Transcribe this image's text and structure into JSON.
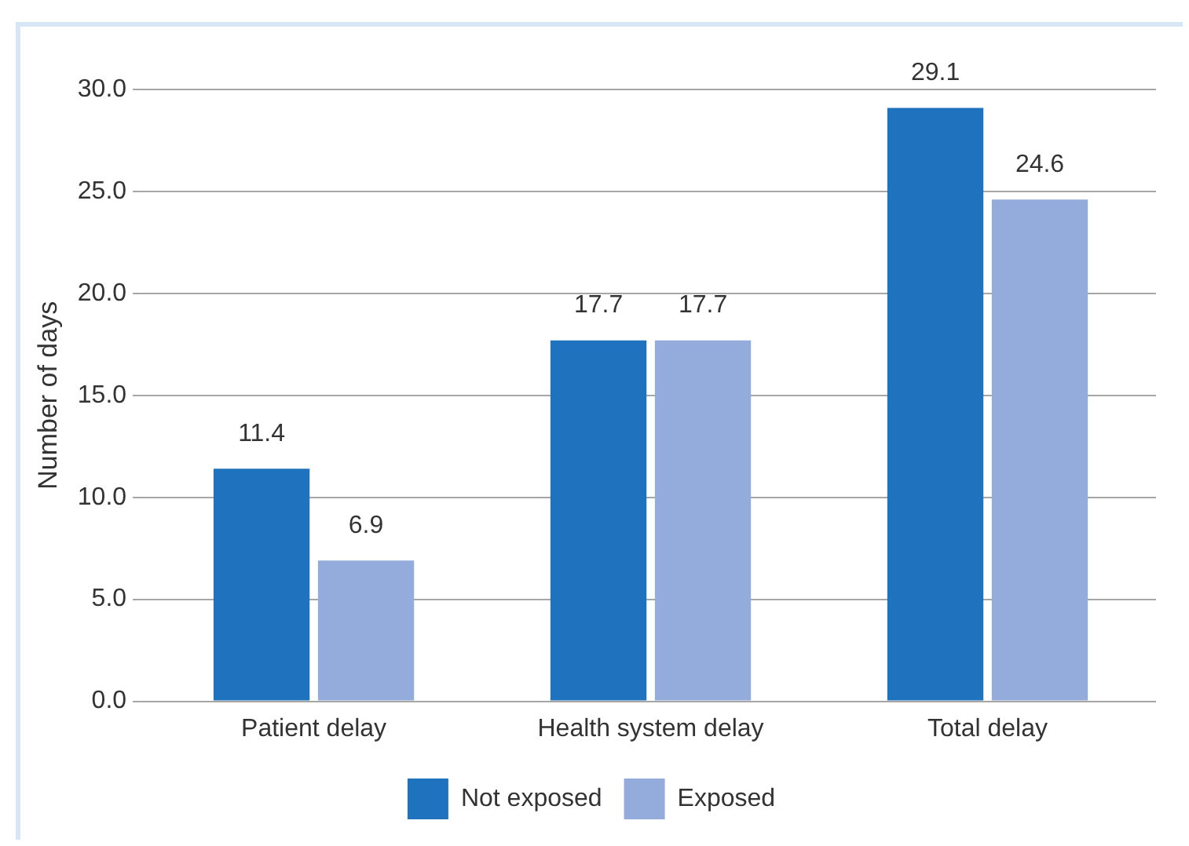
{
  "chart_data": {
    "type": "bar",
    "categories": [
      "Patient delay",
      "Health system delay",
      "Total delay"
    ],
    "series": [
      {
        "name": "Not exposed",
        "color": "#1f72bd",
        "values": [
          11.4,
          17.7,
          29.1
        ]
      },
      {
        "name": "Exposed",
        "color": "#93acdc",
        "values": [
          6.9,
          17.7,
          24.6
        ]
      }
    ],
    "ylabel": "Number of days",
    "ylim": [
      0,
      30
    ],
    "yticks": [
      {
        "value": 0,
        "label": "0.0"
      },
      {
        "value": 5,
        "label": "5.0"
      },
      {
        "value": 10,
        "label": "10.0"
      },
      {
        "value": 15,
        "label": "15.0"
      },
      {
        "value": 20,
        "label": "20.0"
      },
      {
        "value": 25,
        "label": "25.0"
      },
      {
        "value": 30,
        "label": "30.0"
      }
    ],
    "grid": "y",
    "legend": "bottom",
    "data_labels": true
  }
}
